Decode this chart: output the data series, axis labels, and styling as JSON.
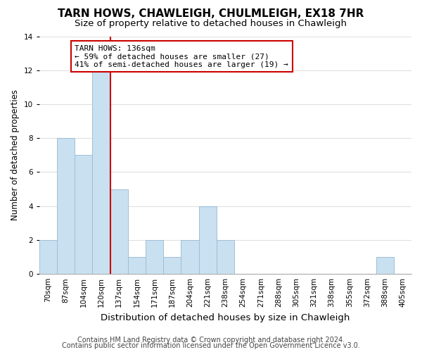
{
  "title": "TARN HOWS, CHAWLEIGH, CHULMLEIGH, EX18 7HR",
  "subtitle": "Size of property relative to detached houses in Chawleigh",
  "xlabel": "Distribution of detached houses by size in Chawleigh",
  "ylabel": "Number of detached properties",
  "bin_labels": [
    "70sqm",
    "87sqm",
    "104sqm",
    "120sqm",
    "137sqm",
    "154sqm",
    "171sqm",
    "187sqm",
    "204sqm",
    "221sqm",
    "238sqm",
    "254sqm",
    "271sqm",
    "288sqm",
    "305sqm",
    "321sqm",
    "338sqm",
    "355sqm",
    "372sqm",
    "388sqm",
    "405sqm"
  ],
  "bar_heights": [
    2,
    8,
    7,
    12,
    5,
    1,
    2,
    1,
    2,
    4,
    2,
    0,
    0,
    0,
    0,
    0,
    0,
    0,
    0,
    1,
    0
  ],
  "bar_color": "#c9e0f0",
  "bar_edge_color": "#9dbfd8",
  "vline_color": "#cc0000",
  "annotation_text": "TARN HOWS: 136sqm\n← 59% of detached houses are smaller (27)\n41% of semi-detached houses are larger (19) →",
  "annotation_box_color": "white",
  "annotation_box_edge": "#cc0000",
  "ylim": [
    0,
    14
  ],
  "yticks": [
    0,
    2,
    4,
    6,
    8,
    10,
    12,
    14
  ],
  "footer_line1": "Contains HM Land Registry data © Crown copyright and database right 2024.",
  "footer_line2": "Contains public sector information licensed under the Open Government Licence v3.0.",
  "background_color": "white",
  "plot_bg_color": "white",
  "grid_color": "#e0e0e0",
  "title_fontsize": 11,
  "subtitle_fontsize": 9.5,
  "xlabel_fontsize": 9.5,
  "ylabel_fontsize": 8.5,
  "tick_fontsize": 7.5,
  "annotation_fontsize": 8,
  "footer_fontsize": 7
}
